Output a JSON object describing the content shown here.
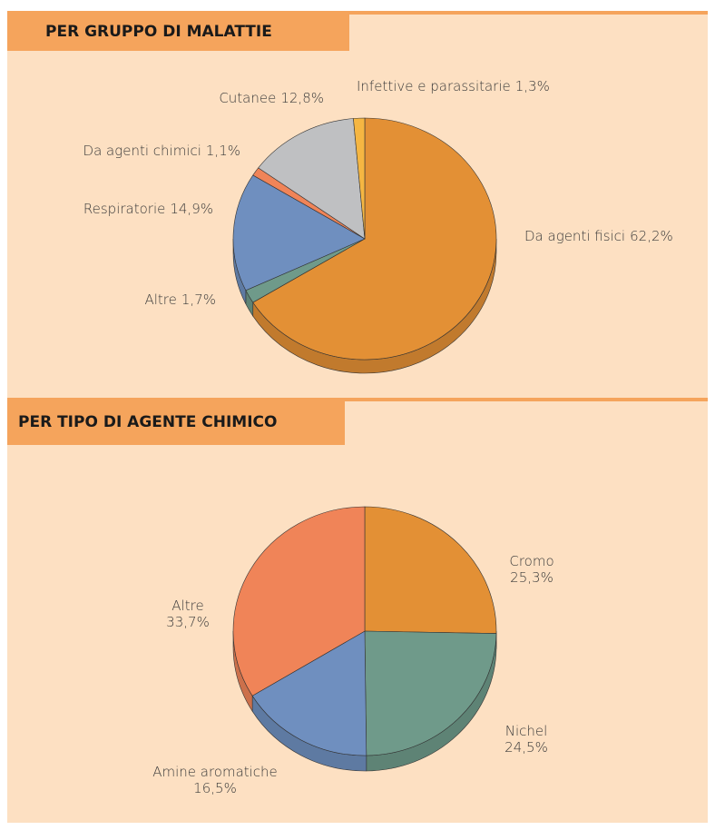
{
  "chart_data": [
    {
      "type": "pie",
      "title": "PER GRUPPO DI MALATTIE",
      "categories": [
        "Da agenti fisici",
        "Altre",
        "Respiratorie",
        "Da agenti chimici",
        "Cutanee",
        "Infettive e parassitarie"
      ],
      "values": [
        62.2,
        1.7,
        14.9,
        1.1,
        12.8,
        1.3
      ],
      "value_labels": [
        "62,2%",
        "1,7%",
        "14,9%",
        "1,1%",
        "12,8%",
        "1,3%"
      ],
      "colors": [
        "#e39035",
        "#6f9a8a",
        "#6f8fbf",
        "#f08458",
        "#bfc0c2",
        "#f5b642"
      ]
    },
    {
      "type": "pie",
      "title": "PER TIPO DI AGENTE CHIMICO",
      "categories": [
        "Cromo",
        "Nichel",
        "Amine aromatiche",
        "Altre"
      ],
      "values": [
        25.3,
        24.5,
        16.5,
        33.7
      ],
      "value_labels": [
        "25,3%",
        "24,5%",
        "16,5%",
        "33,7%"
      ],
      "colors": [
        "#e39035",
        "#6f9a8a",
        "#6f8fbf",
        "#f08458"
      ]
    }
  ]
}
